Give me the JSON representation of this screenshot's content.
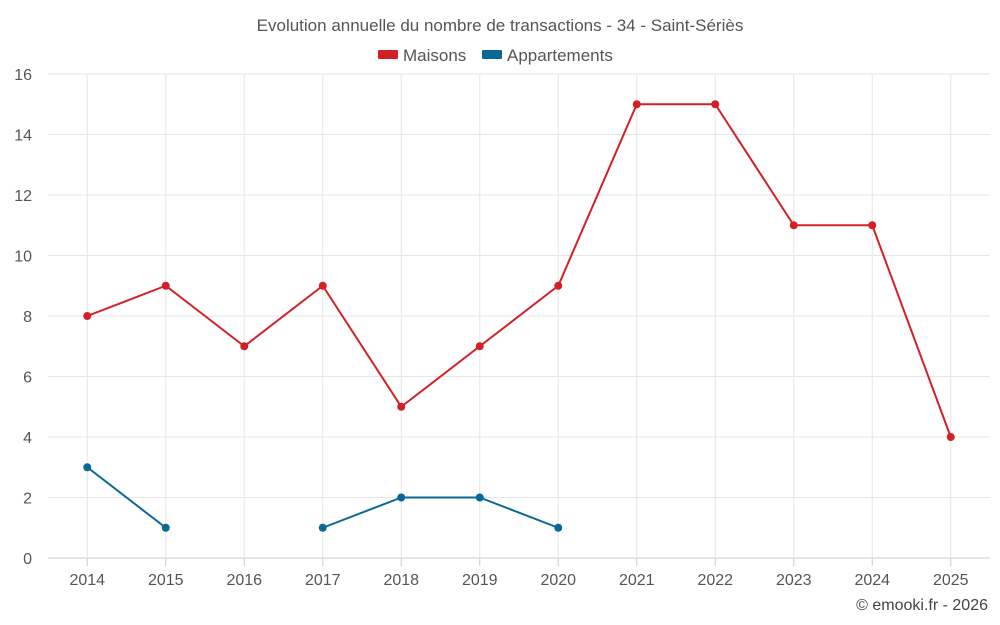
{
  "chart_data": {
    "type": "line",
    "title": "Evolution annuelle du nombre de transactions - 34 - Saint-Sériès",
    "categories": [
      "2014",
      "2015",
      "2016",
      "2017",
      "2018",
      "2019",
      "2020",
      "2021",
      "2022",
      "2023",
      "2024",
      "2025"
    ],
    "series": [
      {
        "name": "Maisons",
        "color": "#d32027",
        "values": [
          8,
          9,
          7,
          9,
          5,
          7,
          9,
          15,
          15,
          11,
          11,
          4
        ]
      },
      {
        "name": "Appartements",
        "color": "#0a6896",
        "values": [
          3,
          1,
          null,
          1,
          2,
          2,
          1,
          null,
          null,
          null,
          null,
          null
        ]
      }
    ],
    "ylim": [
      0,
      16
    ],
    "yticks": [
      0,
      2,
      4,
      6,
      8,
      10,
      12,
      14,
      16
    ],
    "xlabel": "",
    "ylabel": "",
    "grid": true,
    "legend_position": "top-center"
  },
  "credit": "© emooki.fr - 2026"
}
